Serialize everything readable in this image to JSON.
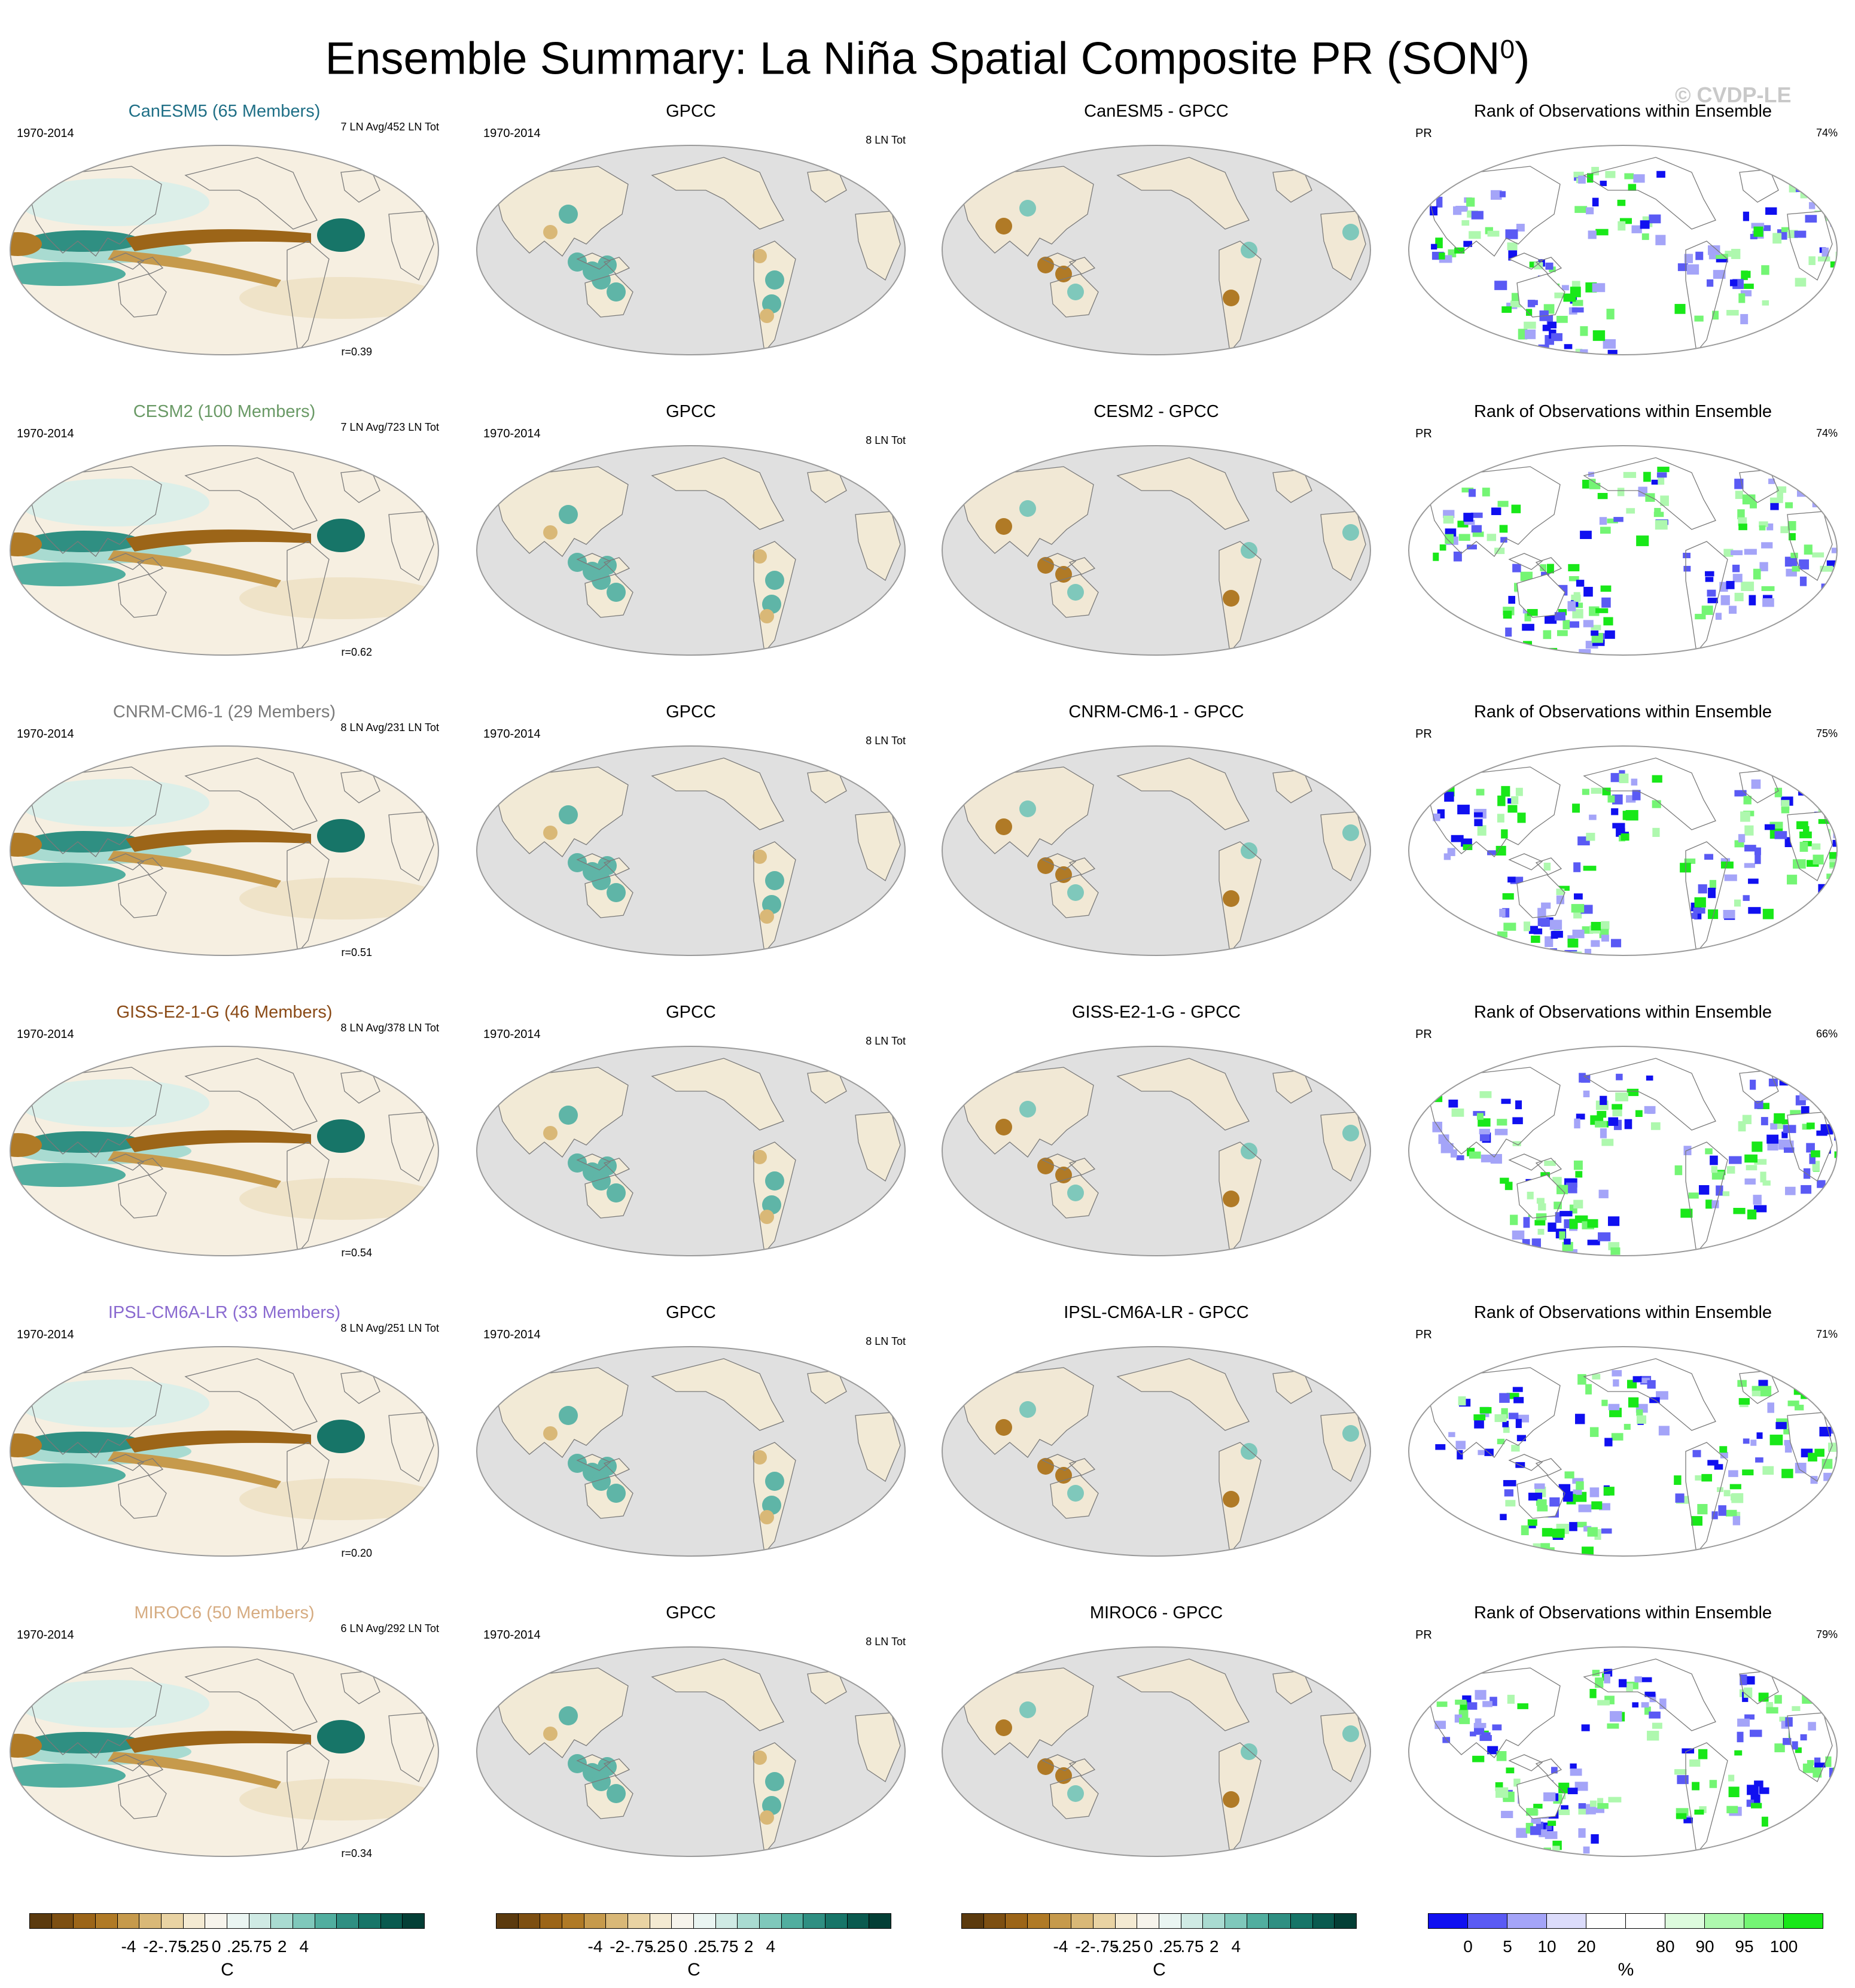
{
  "title": "Ensemble Summary: La Niña Spatial Composite PR (SON",
  "title_sup": "0",
  "title_close": ")",
  "credit": "© CVDP-LE",
  "rows": [
    {
      "model": "CanESM5 (65 Members)",
      "model_color": "#1f6f86",
      "period": "1970-2014",
      "model_stat": "7 LN Avg/452 LN Tot",
      "r": "r=0.39",
      "diff_title": "CanESM5 - GPCC",
      "rank_pct": "74%"
    },
    {
      "model": "CESM2 (100 Members)",
      "model_color": "#6a9a66",
      "period": "1970-2014",
      "model_stat": "7 LN Avg/723 LN Tot",
      "r": "r=0.62",
      "diff_title": "CESM2 - GPCC",
      "rank_pct": "74%"
    },
    {
      "model": "CNRM-CM6-1 (29 Members)",
      "model_color": "#7a7a7a",
      "period": "1970-2014",
      "model_stat": "8 LN Avg/231 LN Tot",
      "r": "r=0.51",
      "diff_title": "CNRM-CM6-1 - GPCC",
      "rank_pct": "75%"
    },
    {
      "model": "GISS-E2-1-G (46 Members)",
      "model_color": "#8a4a16",
      "period": "1970-2014",
      "model_stat": "8 LN Avg/378 LN Tot",
      "r": "r=0.54",
      "diff_title": "GISS-E2-1-G - GPCC",
      "rank_pct": "66%"
    },
    {
      "model": "IPSL-CM6A-LR (33 Members)",
      "model_color": "#8a6ad0",
      "period": "1970-2014",
      "model_stat": "8 LN Avg/251 LN Tot",
      "r": "r=0.20",
      "diff_title": "IPSL-CM6A-LR - GPCC",
      "rank_pct": "71%"
    },
    {
      "model": "MIROC6 (50 Members)",
      "model_color": "#d6ac82",
      "period": "1970-2014",
      "model_stat": "6 LN Avg/292 LN Tot",
      "r": "r=0.34",
      "diff_title": "MIROC6 - GPCC",
      "rank_pct": "79%"
    }
  ],
  "obs": {
    "title": "GPCC",
    "period": "1970-2014",
    "stat": "8 LN Tot"
  },
  "rank": {
    "title": "Rank of Observations within Ensemble",
    "var": "PR"
  },
  "colorbars": {
    "diverging": {
      "colors": [
        "#5b3a0e",
        "#7d4f12",
        "#9c6518",
        "#b07a26",
        "#c69a4c",
        "#d9b877",
        "#e9d3a3",
        "#f4ead2",
        "#f7f4ec",
        "#eaf5f2",
        "#cfeae4",
        "#a9dbd1",
        "#7fc8bb",
        "#51ae9f",
        "#2f8f82",
        "#177568",
        "#0a5a4f",
        "#033f36"
      ],
      "ticks": [
        "-4",
        "-2",
        "-.75",
        "-.25",
        "0",
        ".25",
        ".75",
        "2",
        "4"
      ],
      "unit": "C"
    },
    "rank": {
      "colors": [
        "#1010f0",
        "#5a5af4",
        "#a4a4f8",
        "#dcdcfb",
        "#ffffff",
        "#ffffff",
        "#ddfbdd",
        "#aef8ae",
        "#74f574",
        "#19e819"
      ],
      "ticks": [
        "0",
        "5",
        "10",
        "20",
        "80",
        "90",
        "95",
        "100"
      ],
      "unit": "%"
    }
  }
}
